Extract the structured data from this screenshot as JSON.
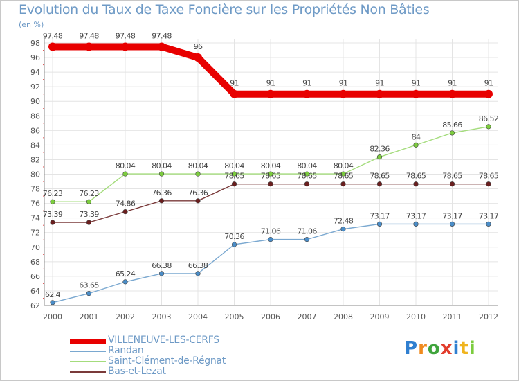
{
  "chart_data": {
    "type": "line",
    "title": "Evolution du Taux de Taxe Foncière sur les Propriétés Non Bâties",
    "ylabel": "(en %)",
    "xlabel": "",
    "ylim": [
      62,
      98
    ],
    "yticks": [
      62,
      64,
      66,
      68,
      70,
      72,
      74,
      76,
      78,
      80,
      82,
      84,
      86,
      88,
      90,
      92,
      94,
      96,
      98
    ],
    "categories": [
      "2000",
      "2001",
      "2002",
      "2003",
      "2004",
      "2005",
      "2006",
      "2007",
      "2008",
      "2009",
      "2010",
      "2011",
      "2012"
    ],
    "series": [
      {
        "name": "VILLENEUVE-LES-CERFS",
        "color": "#e80000",
        "line_width": 10,
        "marker_color": "#e80000",
        "values": [
          97.48,
          97.48,
          97.48,
          97.48,
          96,
          91,
          91,
          91,
          91,
          91,
          91,
          91,
          91
        ],
        "labels": [
          "97.48",
          "97.48",
          "97.48",
          "97.48",
          "96",
          "91",
          "91",
          "91",
          "91",
          "91",
          "91",
          "91",
          "91"
        ]
      },
      {
        "name": "Randan",
        "color": "#7aa8d0",
        "line_width": 1.4,
        "marker_color": "#4a8dc8",
        "values": [
          62.4,
          63.65,
          65.24,
          66.38,
          66.38,
          70.36,
          71.06,
          71.06,
          72.48,
          73.17,
          73.17,
          73.17,
          73.17
        ],
        "labels": [
          "62.4",
          "63.65",
          "65.24",
          "66.38",
          "66.38",
          "70.36",
          "71.06",
          "71.06",
          "72.48",
          "73.17",
          "73.17",
          "73.17",
          "73.17"
        ]
      },
      {
        "name": "Saint-Clément-de-Régnat",
        "color": "#a4dc7c",
        "line_width": 1.4,
        "marker_color": "#7ccc3e",
        "values": [
          76.23,
          76.23,
          80.04,
          80.04,
          80.04,
          80.04,
          80.04,
          80.04,
          80.04,
          82.36,
          84,
          85.66,
          86.52
        ],
        "labels": [
          "76.23",
          "76.23",
          "80.04",
          "80.04",
          "80.04",
          "80.04",
          "80.04",
          "80.04",
          "80.04",
          "82.36",
          "84",
          "85.66",
          "86.52"
        ]
      },
      {
        "name": "Bas-et-Lezat",
        "color": "#7a3a3a",
        "line_width": 1.4,
        "marker_color": "#6a1e1e",
        "values": [
          73.39,
          73.39,
          74.86,
          76.36,
          76.36,
          78.65,
          78.65,
          78.65,
          78.65,
          78.65,
          78.65,
          78.65,
          78.65
        ],
        "labels": [
          "73.39",
          "73.39",
          "74.86",
          "76.36",
          "76.36",
          "78.65",
          "78.65",
          "78.65",
          "78.65",
          "78.65",
          "78.65",
          "78.65",
          "78.65"
        ]
      }
    ],
    "grid": true,
    "legend_position": "bottom-left"
  },
  "logo": {
    "letters": [
      "P",
      "r",
      "o",
      "x",
      "i",
      "t",
      "i"
    ],
    "colors": [
      "#2f7fd0",
      "#f08a1e",
      "#3fa43c",
      "#e23c2c",
      "#2f7fd0",
      "#f0b41e",
      "#7ccc3e"
    ]
  }
}
